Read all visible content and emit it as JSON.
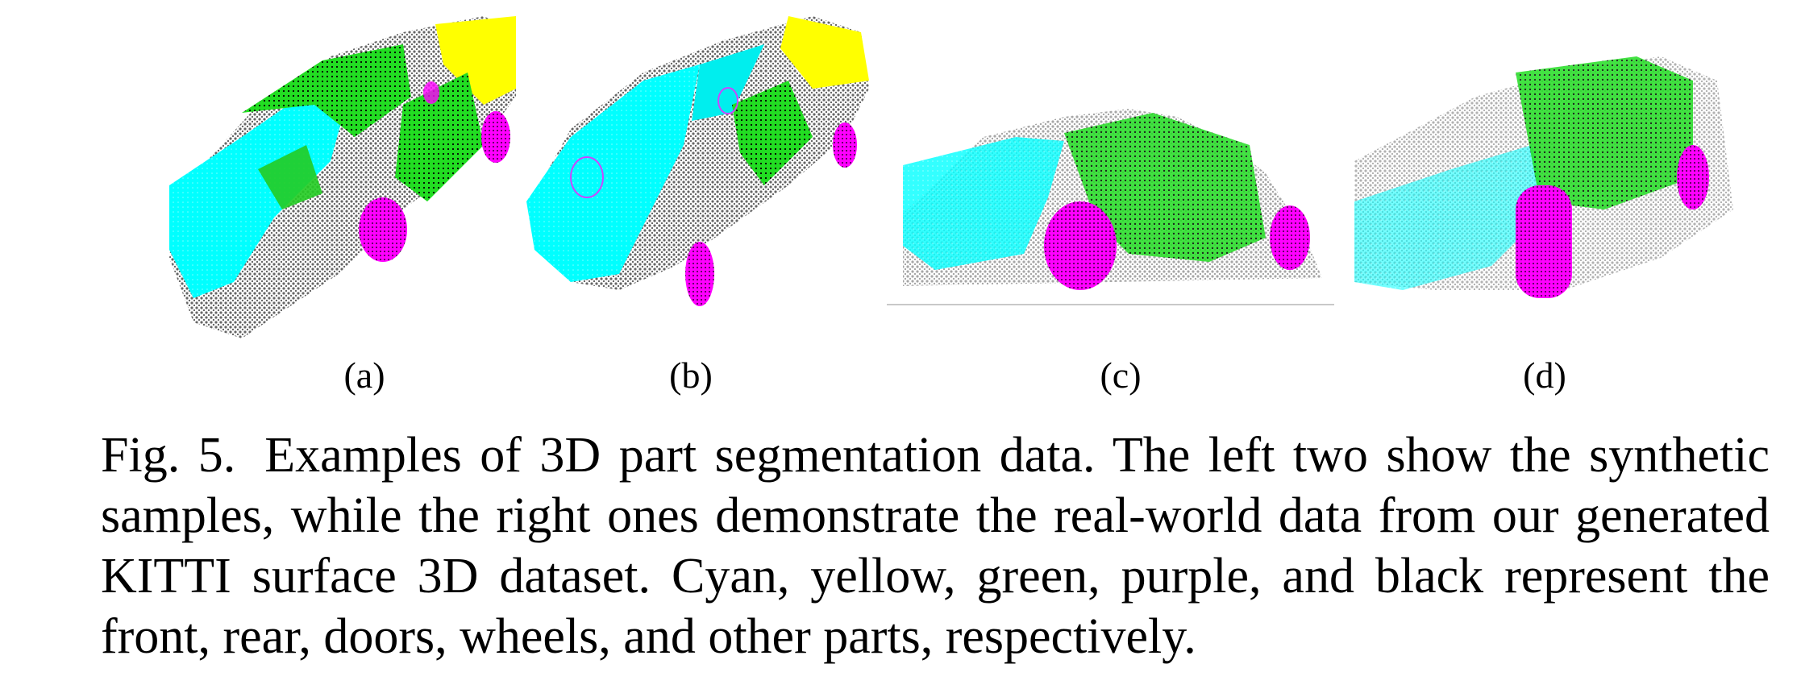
{
  "figure": {
    "panels": [
      {
        "label": "(a)",
        "kind": "synthetic"
      },
      {
        "label": "(b)",
        "kind": "synthetic"
      },
      {
        "label": "(c)",
        "kind": "real-world"
      },
      {
        "label": "(d)",
        "kind": "real-world"
      }
    ],
    "part_colors": {
      "front": "#00ffff",
      "rear": "#ffff00",
      "doors": "#00e000",
      "wheels": "#ff00ff",
      "other": "#000000"
    },
    "caption": {
      "label": "Fig. 5.",
      "text": "Examples of 3D part segmentation data. The left two show the synthetic samples, while the right ones demonstrate the real-world data from our generated KITTI surface 3D dataset. Cyan, yellow, green, purple, and black represent the front, rear, doors, wheels, and other parts, respectively."
    }
  }
}
